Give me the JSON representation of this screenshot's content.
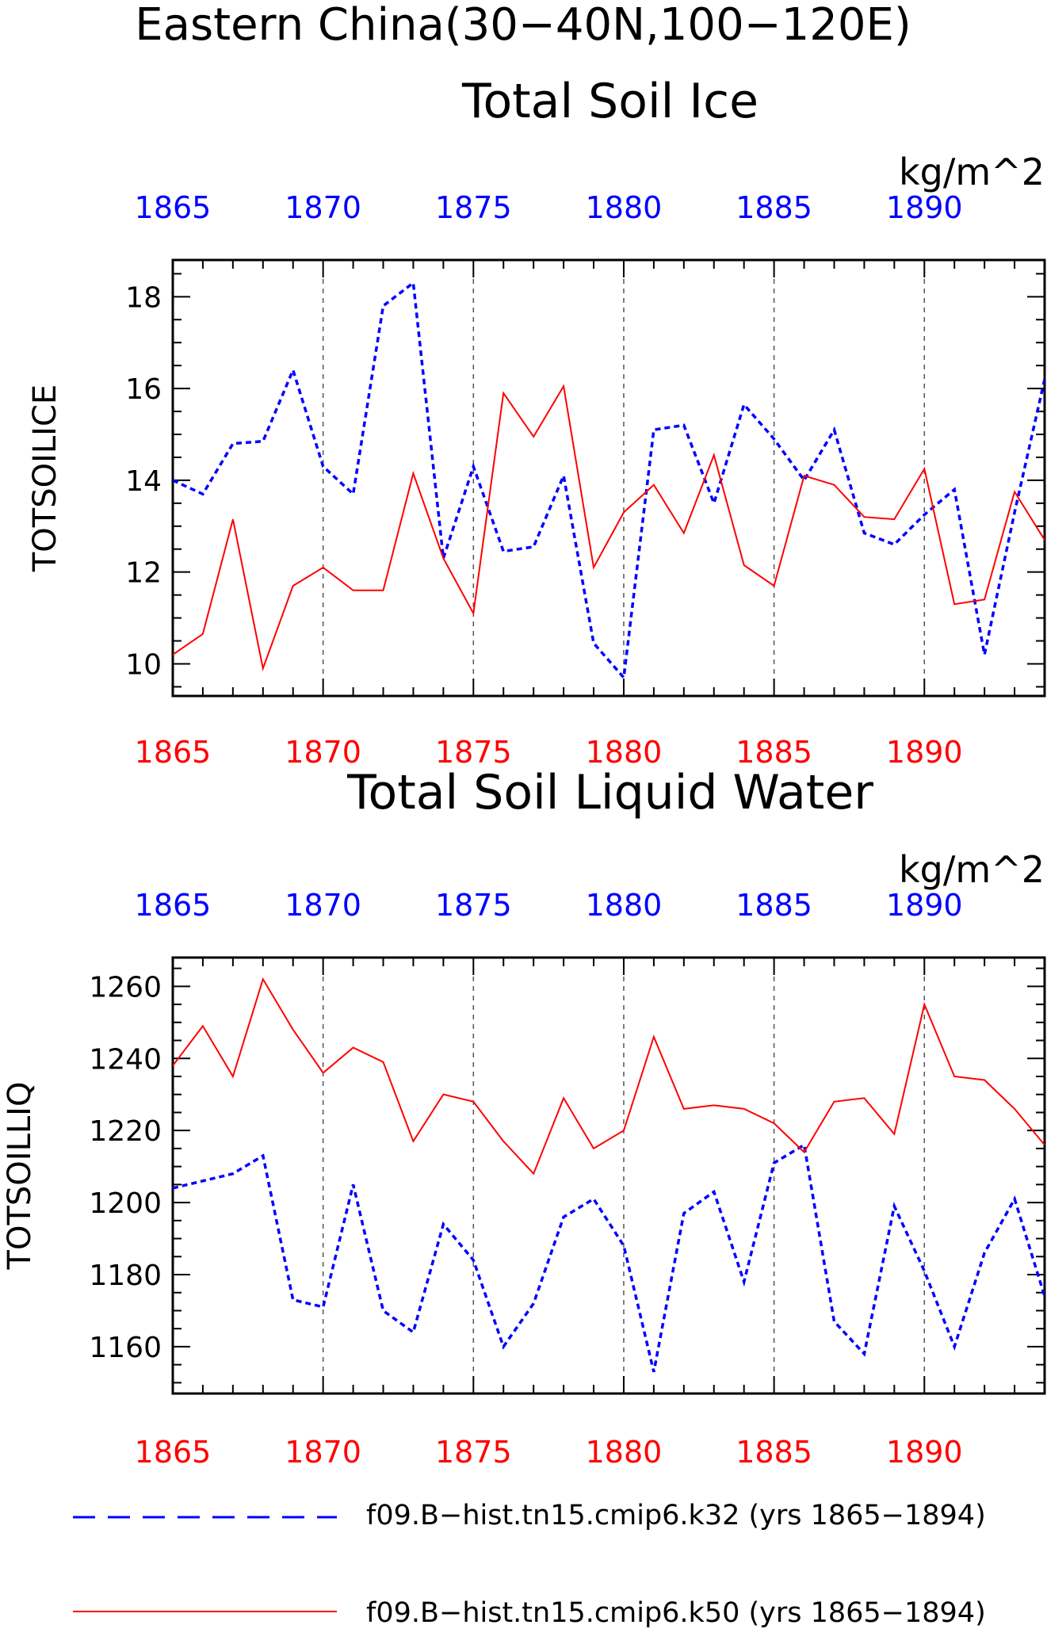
{
  "figure": {
    "title_line1": "Eastern China(30−40N,100−120E)"
  },
  "colors": {
    "series_k32": "#0000ff",
    "series_k50": "#ff0000",
    "axes": "#000000",
    "grid": "#555555"
  },
  "chart_data": [
    {
      "type": "line",
      "title": "Total Soil Ice",
      "units": "kg/m^2",
      "ylabel": "TOTSOILICE",
      "xlim": [
        1865,
        1894
      ],
      "ylim": [
        9.3,
        18.8
      ],
      "x_ticks": [
        1865,
        1870,
        1875,
        1880,
        1885,
        1890
      ],
      "y_ticks": [
        10,
        12,
        14,
        16,
        18
      ],
      "grid": "vertical dashed at major x ticks",
      "x": [
        1865,
        1866,
        1867,
        1868,
        1869,
        1870,
        1871,
        1872,
        1873,
        1874,
        1875,
        1876,
        1877,
        1878,
        1879,
        1880,
        1881,
        1882,
        1883,
        1884,
        1885,
        1886,
        1887,
        1888,
        1889,
        1890,
        1891,
        1892,
        1893,
        1894
      ],
      "series": [
        {
          "name": "f09.B−hist.tn15.cmip6.k32 (yrs 1865−1894)",
          "color": "#0000ff",
          "style": "dashed",
          "values": [
            14.0,
            13.7,
            14.8,
            14.85,
            16.4,
            14.3,
            13.7,
            17.8,
            18.3,
            12.3,
            14.3,
            12.45,
            12.55,
            14.1,
            10.45,
            9.7,
            15.1,
            15.2,
            13.5,
            15.65,
            14.9,
            14.0,
            15.1,
            12.85,
            12.6,
            13.25,
            13.8,
            10.2,
            13.3,
            16.2
          ]
        },
        {
          "name": "f09.B−hist.tn15.cmip6.k50 (yrs 1865−1894)",
          "color": "#ff0000",
          "style": "solid",
          "values": [
            10.2,
            10.65,
            13.15,
            9.9,
            11.7,
            12.1,
            11.6,
            11.6,
            14.15,
            12.3,
            11.1,
            15.9,
            14.95,
            16.05,
            12.1,
            13.3,
            13.9,
            12.85,
            14.55,
            12.15,
            11.7,
            14.1,
            13.9,
            13.2,
            13.15,
            14.25,
            11.3,
            11.4,
            13.75,
            12.7
          ]
        }
      ]
    },
    {
      "type": "line",
      "title": "Total Soil Liquid Water",
      "units": "kg/m^2",
      "ylabel": "TOTSOILLIQ",
      "xlim": [
        1865,
        1894
      ],
      "ylim": [
        1147,
        1268
      ],
      "x_ticks": [
        1865,
        1870,
        1875,
        1880,
        1885,
        1890
      ],
      "y_ticks": [
        1160,
        1180,
        1200,
        1220,
        1240,
        1260
      ],
      "grid": "vertical dashed at major x ticks",
      "x": [
        1865,
        1866,
        1867,
        1868,
        1869,
        1870,
        1871,
        1872,
        1873,
        1874,
        1875,
        1876,
        1877,
        1878,
        1879,
        1880,
        1881,
        1882,
        1883,
        1884,
        1885,
        1886,
        1887,
        1888,
        1889,
        1890,
        1891,
        1892,
        1893,
        1894
      ],
      "series": [
        {
          "name": "f09.B−hist.tn15.cmip6.k32 (yrs 1865−1894)",
          "color": "#0000ff",
          "style": "dashed",
          "values": [
            1204,
            1206,
            1208,
            1213,
            1173,
            1171,
            1205,
            1170,
            1164,
            1194,
            1184,
            1160,
            1172,
            1196,
            1201,
            1188,
            1153,
            1197,
            1203,
            1178,
            1211,
            1216,
            1167,
            1158,
            1199,
            1181,
            1160,
            1186,
            1201,
            1174
          ]
        },
        {
          "name": "f09.B−hist.tn15.cmip6.k50 (yrs 1865−1894)",
          "color": "#ff0000",
          "style": "solid",
          "values": [
            1238,
            1249,
            1235,
            1262,
            1248,
            1236,
            1243,
            1239,
            1217,
            1230,
            1228,
            1217,
            1208,
            1229,
            1215,
            1220,
            1246,
            1226,
            1227,
            1226,
            1222,
            1214,
            1228,
            1229,
            1219,
            1255,
            1235,
            1234,
            1226,
            1216
          ]
        }
      ]
    }
  ],
  "legend": {
    "position": "bottom",
    "entries": [
      {
        "label": "f09.B−hist.tn15.cmip6.k32 (yrs 1865−1894)",
        "color": "#0000ff",
        "style": "dashed"
      },
      {
        "label": "f09.B−hist.tn15.cmip6.k50 (yrs 1865−1894)",
        "color": "#ff0000",
        "style": "solid"
      }
    ]
  }
}
